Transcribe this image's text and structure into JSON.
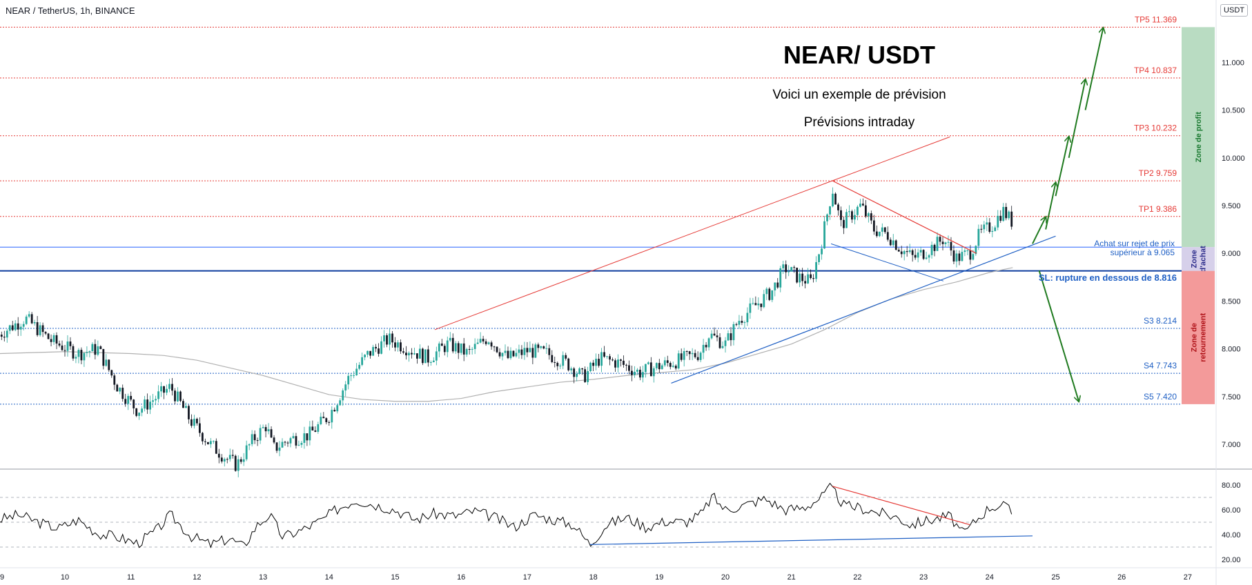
{
  "header": {
    "symbol_line": "NEAR / TetherUS, 1h, BINANCE",
    "currency_badge": "USDT"
  },
  "annotations": {
    "title": "NEAR/ USDT",
    "line1": "Voici un exemple de prévision",
    "line2": "Prévisions intraday",
    "buy_note_1": "Achat sur rejet de prix",
    "buy_note_2": "supérieur à  9.065",
    "sl_note": "SL: rupture en dessous de 8.816"
  },
  "levels": [
    {
      "label": "TP5 11.369",
      "value": 11.369,
      "kind": "tp"
    },
    {
      "label": "TP4 10.837",
      "value": 10.837,
      "kind": "tp"
    },
    {
      "label": "TP3 10.232",
      "value": 10.232,
      "kind": "tp"
    },
    {
      "label": "TP2 9.759",
      "value": 9.759,
      "kind": "tp"
    },
    {
      "label": "TP1 9.386",
      "value": 9.386,
      "kind": "tp"
    },
    {
      "label": "",
      "value": 9.065,
      "kind": "buy"
    },
    {
      "label": "",
      "value": 8.816,
      "kind": "sl"
    },
    {
      "label": "S3 8.214",
      "value": 8.214,
      "kind": "s"
    },
    {
      "label": "S4 7.743",
      "value": 7.743,
      "kind": "s"
    },
    {
      "label": "S5 7.420",
      "value": 7.42,
      "kind": "s"
    }
  ],
  "zones": [
    {
      "label": "Zone de profit",
      "from": 9.065,
      "to": 11.369,
      "color": "#b9dcc2",
      "text_color": "#1b7a32"
    },
    {
      "label": "Zone d'achat",
      "from": 8.816,
      "to": 9.065,
      "color": "#d6d0ea",
      "text_color": "#2a2a8a"
    },
    {
      "label": "Zone de retournement",
      "from": 7.42,
      "to": 8.816,
      "color": "#f39a9a",
      "text_color": "#b0141a"
    }
  ],
  "colors": {
    "up": "#26a69a",
    "down": "#131722",
    "tp": "#e53935",
    "support": "#1e5fc4",
    "arrow": "#1f7a1f",
    "ma": "#b0b0b0"
  },
  "chart_data": [
    {
      "type": "candlestick",
      "title": "",
      "x_ticks": [
        "10",
        "11",
        "12",
        "13",
        "14",
        "15",
        "16",
        "17",
        "18",
        "19",
        "20",
        "21",
        "22",
        "23",
        "24",
        "25",
        "26",
        "27"
      ],
      "y_ticks": [
        "7.000",
        "7.500",
        "8.000",
        "8.500",
        "9.000",
        "9.500",
        "10.000",
        "10.500",
        "11.000"
      ],
      "ylim": [
        6.7,
        11.45
      ],
      "close_path": [
        [
          9.0,
          8.15
        ],
        [
          9.4,
          8.32
        ],
        [
          9.8,
          8.08
        ],
        [
          10.2,
          7.95
        ],
        [
          10.5,
          8.0
        ],
        [
          10.8,
          7.6
        ],
        [
          11.1,
          7.35
        ],
        [
          11.4,
          7.5
        ],
        [
          11.6,
          7.6
        ],
        [
          11.9,
          7.25
        ],
        [
          12.2,
          7.0
        ],
        [
          12.45,
          6.85
        ],
        [
          12.6,
          6.78
        ],
        [
          12.85,
          7.05
        ],
        [
          13.05,
          7.2
        ],
        [
          13.15,
          6.95
        ],
        [
          13.4,
          7.05
        ],
        [
          13.7,
          7.1
        ],
        [
          14.0,
          7.3
        ],
        [
          14.3,
          7.7
        ],
        [
          14.6,
          7.95
        ],
        [
          14.9,
          8.1
        ],
        [
          15.2,
          8.0
        ],
        [
          15.5,
          7.9
        ],
        [
          15.8,
          8.05
        ],
        [
          16.1,
          7.95
        ],
        [
          16.4,
          8.12
        ],
        [
          16.7,
          7.9
        ],
        [
          17.0,
          7.98
        ],
        [
          17.3,
          7.95
        ],
        [
          17.6,
          7.85
        ],
        [
          17.85,
          7.7
        ],
        [
          18.1,
          7.9
        ],
        [
          18.4,
          7.85
        ],
        [
          18.7,
          7.75
        ],
        [
          19.0,
          7.82
        ],
        [
          19.3,
          7.88
        ],
        [
          19.6,
          7.95
        ],
        [
          19.75,
          8.15
        ],
        [
          20.0,
          8.05
        ],
        [
          20.2,
          8.3
        ],
        [
          20.45,
          8.45
        ],
        [
          20.7,
          8.6
        ],
        [
          20.9,
          8.85
        ],
        [
          21.1,
          8.75
        ],
        [
          21.3,
          8.7
        ],
        [
          21.45,
          9.1
        ],
        [
          21.62,
          9.68
        ],
        [
          21.75,
          9.3
        ],
        [
          21.9,
          9.4
        ],
        [
          22.05,
          9.5
        ],
        [
          22.25,
          9.25
        ],
        [
          22.45,
          9.2
        ],
        [
          22.65,
          9.05
        ],
        [
          22.85,
          8.95
        ],
        [
          23.1,
          9.05
        ],
        [
          23.3,
          9.15
        ],
        [
          23.5,
          8.95
        ],
        [
          23.7,
          9.0
        ],
        [
          23.85,
          9.2
        ],
        [
          24.05,
          9.3
        ],
        [
          24.2,
          9.45
        ],
        [
          24.35,
          9.32
        ]
      ],
      "rsi_ylim": [
        20,
        85
      ],
      "rsi_ticks": [
        "80.00",
        "60.00",
        "40.00",
        "20.00"
      ],
      "rsi_path": [
        [
          9.0,
          52
        ],
        [
          9.3,
          56
        ],
        [
          9.6,
          50
        ],
        [
          9.9,
          45
        ],
        [
          10.2,
          52
        ],
        [
          10.5,
          41
        ],
        [
          10.8,
          38
        ],
        [
          11.1,
          33
        ],
        [
          11.4,
          44
        ],
        [
          11.6,
          56
        ],
        [
          11.9,
          39
        ],
        [
          12.2,
          32
        ],
        [
          12.5,
          37
        ],
        [
          12.7,
          30
        ],
        [
          12.9,
          47
        ],
        [
          13.1,
          56
        ],
        [
          13.3,
          38
        ],
        [
          13.6,
          44
        ],
        [
          13.9,
          52
        ],
        [
          14.1,
          60
        ],
        [
          14.4,
          68
        ],
        [
          14.7,
          64
        ],
        [
          15.0,
          60
        ],
        [
          15.3,
          52
        ],
        [
          15.6,
          57
        ],
        [
          15.9,
          55
        ],
        [
          16.2,
          59
        ],
        [
          16.5,
          54
        ],
        [
          16.8,
          46
        ],
        [
          17.1,
          56
        ],
        [
          17.4,
          52
        ],
        [
          17.7,
          48
        ],
        [
          17.95,
          32
        ],
        [
          18.2,
          48
        ],
        [
          18.5,
          54
        ],
        [
          18.8,
          46
        ],
        [
          19.1,
          51
        ],
        [
          19.4,
          50
        ],
        [
          19.65,
          57
        ],
        [
          19.8,
          71
        ],
        [
          20.0,
          60
        ],
        [
          20.3,
          64
        ],
        [
          20.6,
          69
        ],
        [
          20.9,
          60
        ],
        [
          21.2,
          62
        ],
        [
          21.45,
          70
        ],
        [
          21.6,
          78
        ],
        [
          21.8,
          63
        ],
        [
          22.0,
          62
        ],
        [
          22.3,
          58
        ],
        [
          22.6,
          54
        ],
        [
          22.8,
          48
        ],
        [
          23.1,
          52
        ],
        [
          23.4,
          55
        ],
        [
          23.6,
          40
        ],
        [
          23.8,
          52
        ],
        [
          24.0,
          62
        ],
        [
          24.2,
          64
        ],
        [
          24.35,
          57
        ]
      ]
    }
  ]
}
